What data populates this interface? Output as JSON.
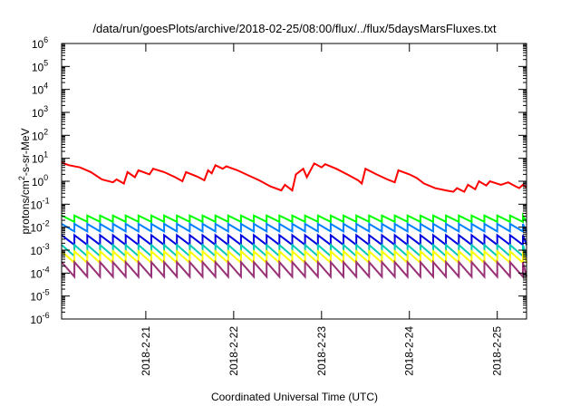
{
  "chart_data": {
    "type": "line",
    "title": "/data/run/goesPlots/archive/2018-02-25/08:00/flux/../flux/5daysMarsFluxes.txt",
    "xlabel": "Coordinated Universal Time (UTC)",
    "ylabel": "protons/cm²-s-sr-MeV",
    "ylabel_parts": {
      "pre": "protons/cm",
      "sup": "2",
      "post": "-s-sr-MeV"
    },
    "x_scale": "time",
    "x_range": [
      "2018-02-20T01:00",
      "2018-02-25T08:00"
    ],
    "x_ticks": [
      {
        "t": "2018-02-21T00:00",
        "label": "2018-2-21"
      },
      {
        "t": "2018-02-22T00:00",
        "label": "2018-2-22"
      },
      {
        "t": "2018-02-23T00:00",
        "label": "2018-2-23"
      },
      {
        "t": "2018-02-24T00:00",
        "label": "2018-2-24"
      },
      {
        "t": "2018-02-25T00:00",
        "label": "2018-2-25"
      }
    ],
    "y_scale": "log",
    "ylim": [
      1e-06,
      1000000.0
    ],
    "y_ticks": [
      {
        "v": 1e-06,
        "base": "10",
        "exp": "-6"
      },
      {
        "v": 1e-05,
        "base": "10",
        "exp": "-5"
      },
      {
        "v": 0.0001,
        "base": "10",
        "exp": "-4"
      },
      {
        "v": 0.001,
        "base": "10",
        "exp": "-3"
      },
      {
        "v": 0.01,
        "base": "10",
        "exp": "-2"
      },
      {
        "v": 0.1,
        "base": "10",
        "exp": "-1"
      },
      {
        "v": 1,
        "base": "10",
        "exp": "0"
      },
      {
        "v": 10,
        "base": "10",
        "exp": "1"
      },
      {
        "v": 100,
        "base": "10",
        "exp": "2"
      },
      {
        "v": 1000,
        "base": "10",
        "exp": "3"
      },
      {
        "v": 10000,
        "base": "10",
        "exp": "4"
      },
      {
        "v": 100000,
        "base": "10",
        "exp": "5"
      },
      {
        "v": 1000000,
        "base": "10",
        "exp": "6"
      }
    ],
    "grid": false,
    "legend": "none",
    "series": [
      {
        "color": "#ff0000",
        "values": [
          [
            "2018-02-20T01:00",
            6.5
          ],
          [
            "2018-02-20T03:00",
            5.0
          ],
          [
            "2018-02-20T06:00",
            4.0
          ],
          [
            "2018-02-20T09:00",
            2.5
          ],
          [
            "2018-02-20T12:00",
            1.2
          ],
          [
            "2018-02-20T15:00",
            0.9
          ],
          [
            "2018-02-20T16:00",
            1.2
          ],
          [
            "2018-02-20T18:00",
            0.8
          ],
          [
            "2018-02-20T19:00",
            2.5
          ],
          [
            "2018-02-20T21:00",
            1.5
          ],
          [
            "2018-02-20T22:00",
            3.0
          ],
          [
            "2018-02-21T01:00",
            2.0
          ],
          [
            "2018-02-21T02:00",
            3.5
          ],
          [
            "2018-02-21T05:00",
            2.5
          ],
          [
            "2018-02-21T08:00",
            1.5
          ],
          [
            "2018-02-21T10:00",
            1.0
          ],
          [
            "2018-02-21T11:00",
            2.5
          ],
          [
            "2018-02-21T14:00",
            1.6
          ],
          [
            "2018-02-21T16:00",
            1.1
          ],
          [
            "2018-02-21T17:00",
            3.0
          ],
          [
            "2018-02-21T18:00",
            2.2
          ],
          [
            "2018-02-21T19:00",
            5.0
          ],
          [
            "2018-02-21T21:00",
            3.5
          ],
          [
            "2018-02-21T22:00",
            4.5
          ],
          [
            "2018-02-22T01:00",
            3.0
          ],
          [
            "2018-02-22T04:00",
            1.8
          ],
          [
            "2018-02-22T07:00",
            1.1
          ],
          [
            "2018-02-22T10:00",
            0.6
          ],
          [
            "2018-02-22T13:00",
            0.4
          ],
          [
            "2018-02-22T14:00",
            0.7
          ],
          [
            "2018-02-22T16:00",
            0.4
          ],
          [
            "2018-02-22T17:00",
            2.0
          ],
          [
            "2018-02-22T19:00",
            3.5
          ],
          [
            "2018-02-22T20:00",
            1.5
          ],
          [
            "2018-02-22T22:00",
            6.0
          ],
          [
            "2018-02-23T00:00",
            4.0
          ],
          [
            "2018-02-23T01:00",
            5.5
          ],
          [
            "2018-02-23T04:00",
            3.5
          ],
          [
            "2018-02-23T07:00",
            2.0
          ],
          [
            "2018-02-23T10:00",
            1.1
          ],
          [
            "2018-02-23T11:00",
            0.8
          ],
          [
            "2018-02-23T12:00",
            3.5
          ],
          [
            "2018-02-23T15:00",
            2.0
          ],
          [
            "2018-02-23T18:00",
            1.2
          ],
          [
            "2018-02-23T20:00",
            0.9
          ],
          [
            "2018-02-23T21:00",
            3.0
          ],
          [
            "2018-02-24T00:00",
            2.0
          ],
          [
            "2018-02-24T02:00",
            1.4
          ],
          [
            "2018-02-24T04:00",
            0.8
          ],
          [
            "2018-02-24T07:00",
            0.5
          ],
          [
            "2018-02-24T10:00",
            0.4
          ],
          [
            "2018-02-24T12:00",
            0.35
          ],
          [
            "2018-02-24T13:00",
            0.5
          ],
          [
            "2018-02-24T15:00",
            0.35
          ],
          [
            "2018-02-24T16:00",
            0.7
          ],
          [
            "2018-02-24T18:00",
            0.45
          ],
          [
            "2018-02-24T19:00",
            1.0
          ],
          [
            "2018-02-24T21:00",
            0.65
          ],
          [
            "2018-02-24T22:00",
            1.0
          ],
          [
            "2018-02-25T01:00",
            0.7
          ],
          [
            "2018-02-25T03:00",
            0.9
          ],
          [
            "2018-02-25T05:00",
            0.6
          ],
          [
            "2018-02-25T06:00",
            0.5
          ],
          [
            "2018-02-25T07:00",
            0.7
          ],
          [
            "2018-02-25T08:00",
            0.55
          ]
        ]
      },
      {
        "color": "#00ff00",
        "shape": "sawtooth",
        "peak": 0.032,
        "trough": 0.017,
        "period_hours": 3.5
      },
      {
        "color": "#0080ff",
        "shape": "sawtooth",
        "peak": 0.014,
        "trough": 0.0065,
        "period_hours": 3.5
      },
      {
        "color": "#0000e0",
        "shape": "sawtooth",
        "peak": 0.0045,
        "trough": 0.0017,
        "period_hours": 3.5
      },
      {
        "color": "#00c8b4",
        "shape": "sawtooth",
        "peak": 0.0017,
        "trough": 0.00055,
        "period_hours": 3.5
      },
      {
        "color": "#ffff00",
        "shape": "sawtooth",
        "peak": 0.0009,
        "trough": 0.00028,
        "period_hours": 3.5
      },
      {
        "color": "#993377",
        "shape": "sawtooth",
        "peak": 0.0003,
        "trough": 7e-05,
        "period_hours": 3.5
      }
    ]
  }
}
